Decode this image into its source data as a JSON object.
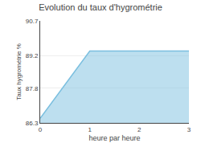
{
  "chart_data": {
    "type": "area",
    "title": "Evolution du taux d'hygrométrie",
    "xlabel": "heure par heure",
    "ylabel": "Taux hygrométrie %",
    "x": [
      0,
      1,
      3
    ],
    "values": [
      86.5,
      89.4,
      89.4
    ],
    "color": "#7bbfdf",
    "xlim": [
      0,
      3
    ],
    "xticks": [
      0,
      1,
      2,
      3
    ],
    "ylim": [
      86.3,
      90.7
    ],
    "yticks": [
      86.3,
      87.8,
      89.2,
      90.7
    ],
    "grid": "y"
  }
}
